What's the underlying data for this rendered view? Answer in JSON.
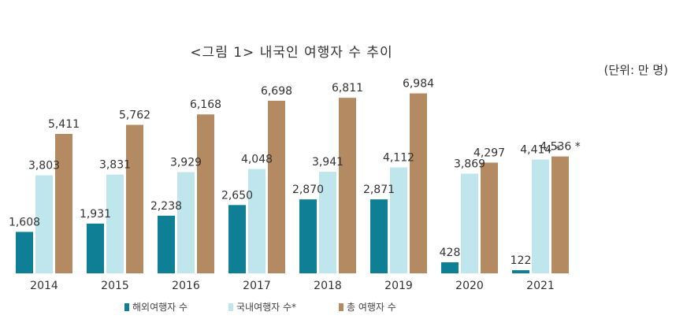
{
  "chart_data": {
    "type": "bar",
    "title": "<그림 1> 내국인 여행자 수 추이",
    "unit": "(단위: 만 명)",
    "categories": [
      "2014",
      "2015",
      "2016",
      "2017",
      "2018",
      "2019",
      "2020",
      "2021"
    ],
    "ylim": [
      0,
      7000
    ],
    "grid": false,
    "legend_position": "bottom",
    "series": [
      {
        "name": "해외여행자 수",
        "color": "#0f7f96",
        "values": [
          1608,
          1931,
          2238,
          2650,
          2870,
          2871,
          428,
          122
        ],
        "labels": [
          "1,608",
          "1,931",
          "2,238",
          "2,650",
          "2,870",
          "2,871",
          "428",
          "122"
        ]
      },
      {
        "name": "국내여행자 수*",
        "color": "#bfe6ec",
        "values": [
          3803,
          3831,
          3929,
          4048,
          3941,
          4112,
          3869,
          4414
        ],
        "labels": [
          "3,803",
          "3,831",
          "3,929",
          "4,048",
          "3,941",
          "4,112",
          "3,869",
          "4,414 *"
        ]
      },
      {
        "name": "총 여행자 수",
        "color": "#b48a62",
        "values": [
          5411,
          5762,
          6168,
          6698,
          6811,
          6984,
          4297,
          4536
        ],
        "labels": [
          "5,411",
          "5,762",
          "6,168",
          "6,698",
          "6,811",
          "6,984",
          "4,297",
          "4,536 *"
        ]
      }
    ]
  }
}
